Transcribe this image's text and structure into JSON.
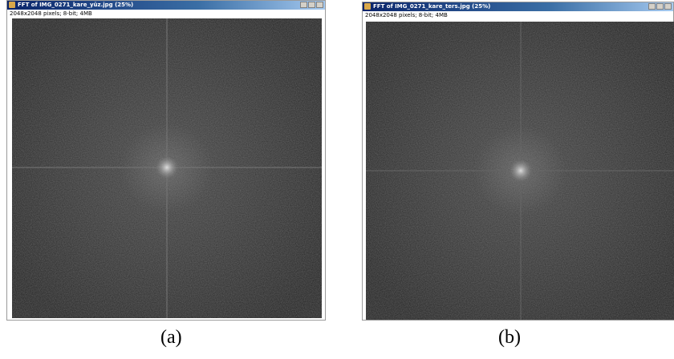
{
  "windows": [
    {
      "title": "FFT of IMG_0271_kare_yüz.jpg (25%)",
      "info": "2048x2048 pixels; 8-bit; 4MB",
      "caption": "(a)"
    },
    {
      "title": "FFT of IMG_0271_kare_ters.jpg (25%)",
      "info": "2048x2048 pixels; 8-bit; 4MB",
      "caption": "(b)"
    }
  ]
}
